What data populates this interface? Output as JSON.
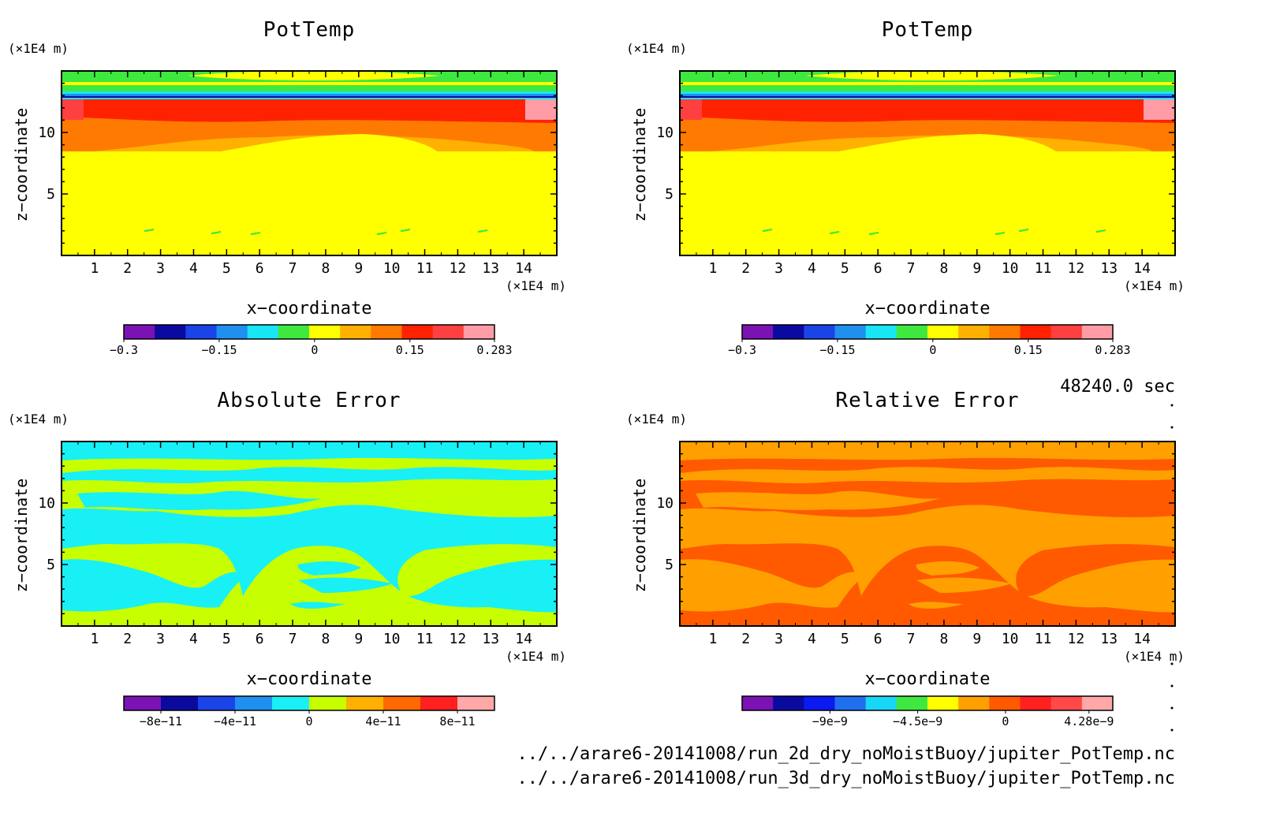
{
  "figure": {
    "time_label": "48240.0 sec",
    "files": [
      "../../arare6-20141008/run_2d_dry_noMoistBuoy/jupiter_PotTemp.nc",
      "../../arare6-20141008/run_3d_dry_noMoistBuoy/jupiter_PotTemp.nc"
    ]
  },
  "chart_data": [
    {
      "type": "heatmap",
      "title": "PotTemp",
      "xlabel": "x−coordinate",
      "ylabel": "z−coordinate",
      "x_unit": "(×1E4 m)",
      "y_unit": "(×1E4 m)",
      "xlim": [
        0,
        15
      ],
      "ylim": [
        0,
        15
      ],
      "x_ticks": [
        "1",
        "2",
        "3",
        "4",
        "5",
        "6",
        "7",
        "8",
        "9",
        "10",
        "11",
        "12",
        "13",
        "14"
      ],
      "y_ticks": [
        "5",
        "10"
      ],
      "colorbar": {
        "colors": [
          "#7a12b4",
          "#0a0aa0",
          "#1a44e8",
          "#1f8ff0",
          "#18e6f5",
          "#3fe83f",
          "#ffff00",
          "#ffb000",
          "#ff7a00",
          "#ff2200",
          "#ff4040",
          "#ff9ca6"
        ],
        "tick_labels": [
          "−0.3",
          "−0.15",
          "0",
          "0.15",
          "0.283"
        ],
        "tick_values": [
          -0.3,
          -0.15,
          0,
          0.15,
          0.283
        ],
        "range": [
          -0.3,
          0.283
        ]
      },
      "field": {
        "description_bands_z": [
          {
            "z_range": [
              0,
              8.2
            ],
            "value": 0.02
          },
          {
            "z_range": [
              8.2,
              9.8
            ],
            "value": 0.1
          },
          {
            "z_range": [
              9.8,
              12.2
            ],
            "value": 0.2
          },
          {
            "z_range": [
              12.2,
              13.0
            ],
            "value": -0.15
          },
          {
            "z_range": [
              13.0,
              15.0
            ],
            "value": -0.02
          }
        ]
      }
    },
    {
      "type": "heatmap",
      "title": "PotTemp",
      "xlabel": "x−coordinate",
      "ylabel": "z−coordinate",
      "x_unit": "(×1E4 m)",
      "y_unit": "(×1E4 m)",
      "xlim": [
        0,
        15
      ],
      "ylim": [
        0,
        15
      ],
      "x_ticks": [
        "1",
        "2",
        "3",
        "4",
        "5",
        "6",
        "7",
        "8",
        "9",
        "10",
        "11",
        "12",
        "13",
        "14"
      ],
      "y_ticks": [
        "5",
        "10"
      ],
      "colorbar": {
        "colors": [
          "#7a12b4",
          "#0a0aa0",
          "#1a44e8",
          "#1f8ff0",
          "#18e6f5",
          "#3fe83f",
          "#ffff00",
          "#ffb000",
          "#ff7a00",
          "#ff2200",
          "#ff4040",
          "#ff9ca6"
        ],
        "tick_labels": [
          "−0.3",
          "−0.15",
          "0",
          "0.15",
          "0.283"
        ],
        "tick_values": [
          -0.3,
          -0.15,
          0,
          0.15,
          0.283
        ],
        "range": [
          -0.3,
          0.283
        ]
      },
      "field": {
        "description_bands_z": [
          {
            "z_range": [
              0,
              8.2
            ],
            "value": 0.02
          },
          {
            "z_range": [
              8.2,
              9.8
            ],
            "value": 0.1
          },
          {
            "z_range": [
              9.8,
              12.2
            ],
            "value": 0.2
          },
          {
            "z_range": [
              12.2,
              13.0
            ],
            "value": -0.15
          },
          {
            "z_range": [
              13.0,
              15.0
            ],
            "value": -0.02
          }
        ]
      }
    },
    {
      "type": "heatmap",
      "title": "Absolute Error",
      "xlabel": "x−coordinate",
      "ylabel": "z−coordinate",
      "x_unit": "(×1E4 m)",
      "y_unit": "(×1E4 m)",
      "xlim": [
        0,
        15
      ],
      "ylim": [
        0,
        15
      ],
      "x_ticks": [
        "1",
        "2",
        "3",
        "4",
        "5",
        "6",
        "7",
        "8",
        "9",
        "10",
        "11",
        "12",
        "13",
        "14"
      ],
      "y_ticks": [
        "5",
        "10"
      ],
      "colorbar": {
        "colors": [
          "#7a12b4",
          "#0a0aa0",
          "#1a44e8",
          "#1f8ff0",
          "#18f0f5",
          "#c8ff00",
          "#ffb000",
          "#ff6a00",
          "#ff2020",
          "#ffa8a8"
        ],
        "tick_labels": [
          "−8e−11",
          "−4e−11",
          "0",
          "4e−11",
          "8e−11"
        ],
        "tick_values": [
          -8e-11,
          -4e-11,
          0,
          4e-11,
          8e-11
        ],
        "range": [
          -1e-10,
          1e-10
        ]
      },
      "field": {
        "values_present": [
          -1e-11,
          1e-11
        ]
      }
    },
    {
      "type": "heatmap",
      "title": "Relative Error",
      "xlabel": "x−coordinate",
      "ylabel": "z−coordinate",
      "x_unit": "(×1E4 m)",
      "y_unit": "(×1E4 m)",
      "xlim": [
        0,
        15
      ],
      "ylim": [
        0,
        15
      ],
      "x_ticks": [
        "1",
        "2",
        "3",
        "4",
        "5",
        "6",
        "7",
        "8",
        "9",
        "10",
        "11",
        "12",
        "13",
        "14"
      ],
      "y_ticks": [
        "5",
        "10"
      ],
      "colorbar": {
        "colors": [
          "#7a12b4",
          "#0a0aa0",
          "#0a1af0",
          "#1f6ff0",
          "#18d6f5",
          "#3fe83f",
          "#ffff00",
          "#ffa000",
          "#ff5a00",
          "#ff2020",
          "#ff4848",
          "#ffa8a8"
        ],
        "tick_labels": [
          "−9e−9",
          "−4.5e−9",
          "0",
          "4.28e−9"
        ],
        "tick_values": [
          -9e-09,
          -4.5e-09,
          0,
          4.28e-09
        ],
        "range": [
          -1.35e-08,
          5.5e-09
        ]
      },
      "field": {
        "values_present": [
          -1e-09,
          1e-09
        ]
      }
    }
  ]
}
